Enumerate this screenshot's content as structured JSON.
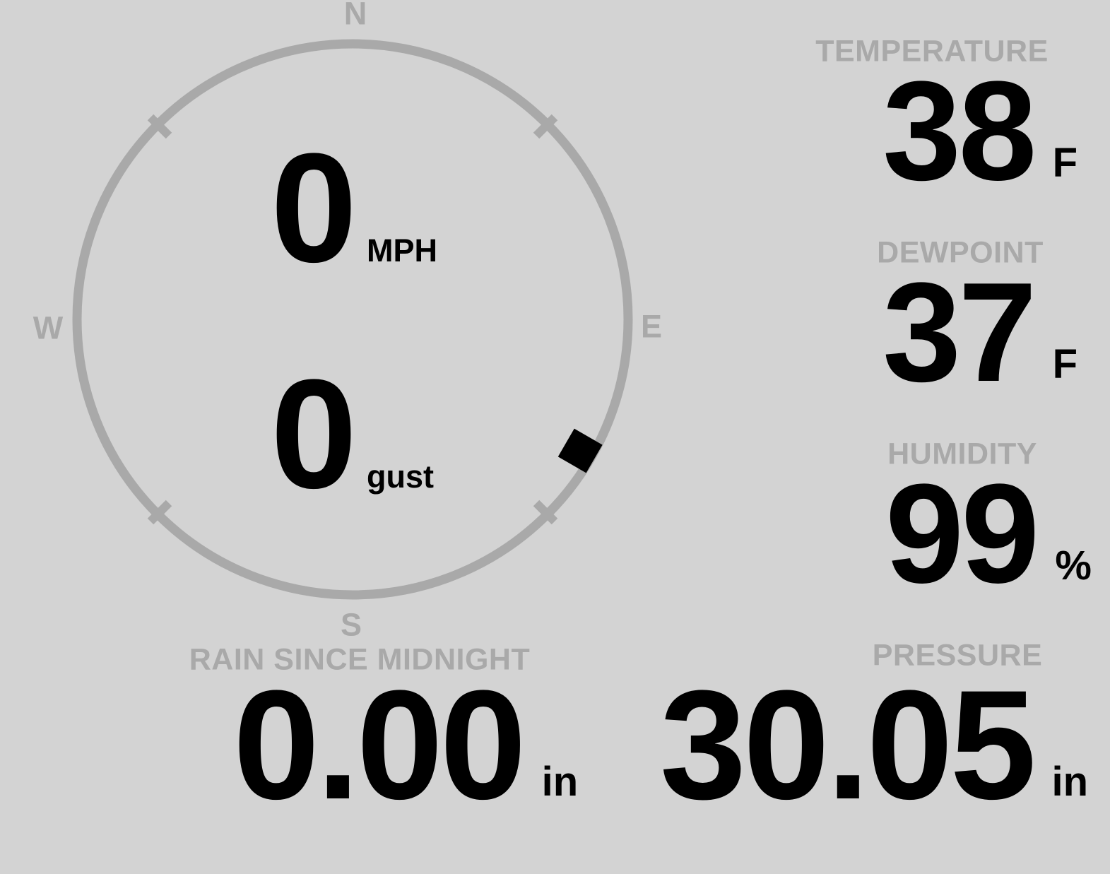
{
  "colors": {
    "background": "#d3d3d3",
    "muted_gray": "#a9a9a9",
    "value_black": "#000000"
  },
  "wind": {
    "speed": "0",
    "speed_unit": "MPH",
    "gust": "0",
    "gust_label": "gust",
    "direction_deg": 120,
    "compass": {
      "north": "N",
      "east": "E",
      "south": "S",
      "west": "W"
    }
  },
  "temperature": {
    "label": "TEMPERATURE",
    "value": "38",
    "unit": "F"
  },
  "dewpoint": {
    "label": "DEWPOINT",
    "value": "37",
    "unit": "F"
  },
  "humidity": {
    "label": "HUMIDITY",
    "value": "99",
    "unit": "%"
  },
  "rain": {
    "label": "RAIN SINCE MIDNIGHT",
    "value": "0.00",
    "unit": "in"
  },
  "pressure": {
    "label": "PRESSURE",
    "value": "30.05",
    "unit": "in"
  }
}
